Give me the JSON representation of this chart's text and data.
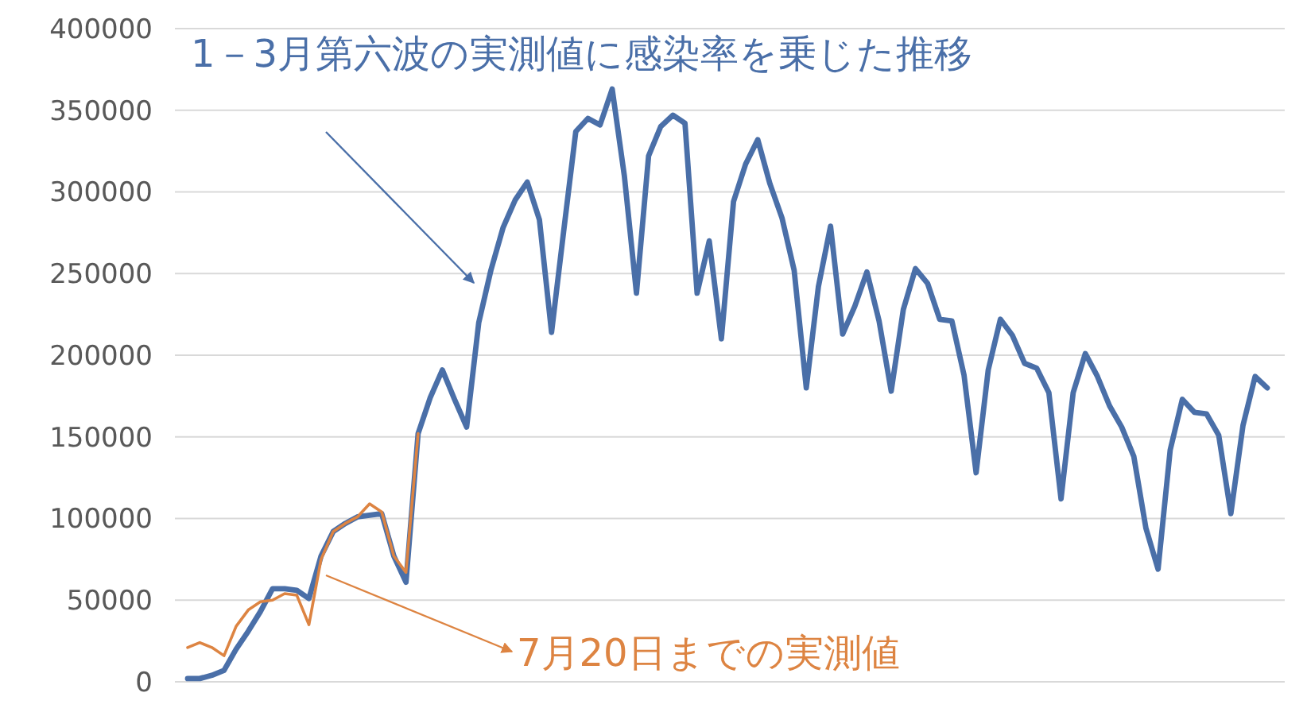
{
  "chart_data": {
    "type": "line",
    "categories": [
      null,
      null,
      null,
      null,
      null,
      null,
      null,
      null,
      null,
      null,
      null,
      null,
      null,
      null,
      null,
      null,
      null,
      null,
      null,
      null,
      null,
      null,
      null,
      null,
      null,
      null,
      null,
      null,
      null,
      null,
      null,
      null,
      null,
      null,
      null,
      null,
      null,
      null,
      null,
      null,
      null,
      null,
      null,
      null,
      null,
      null,
      null,
      null,
      null,
      null,
      null,
      null,
      null,
      null,
      null,
      null,
      null,
      null,
      null,
      null,
      null,
      null,
      null,
      null,
      null,
      null,
      null,
      null,
      null,
      null,
      null,
      null,
      null,
      null,
      null,
      null,
      null,
      null,
      null,
      null,
      null,
      null,
      null,
      null,
      null,
      null,
      null,
      null,
      null,
      null
    ],
    "ylim": [
      0,
      400000
    ],
    "yticks": [
      0,
      50000,
      100000,
      150000,
      200000,
      250000,
      300000,
      350000,
      400000
    ],
    "grid": "y",
    "tick_labels": "y",
    "marker": "none",
    "series": [
      {
        "name": "1－3月第六波の実測値に感染率を乗じた推移",
        "color": "#4a6fa8",
        "values": [
          2000,
          2000,
          4000,
          7000,
          20000,
          31000,
          43000,
          57000,
          57000,
          56000,
          51000,
          77000,
          92000,
          97000,
          101000,
          102000,
          103000,
          77000,
          61000,
          152000,
          174000,
          191000,
          173000,
          156000,
          220000,
          252000,
          278000,
          295000,
          306000,
          283000,
          214000,
          276000,
          337000,
          345000,
          341000,
          363000,
          310000,
          238000,
          322000,
          340000,
          347000,
          342000,
          238000,
          270000,
          210000,
          294000,
          317000,
          332000,
          305000,
          284000,
          252000,
          180000,
          242000,
          279000,
          213000,
          230000,
          251000,
          221000,
          178000,
          228000,
          253000,
          244000,
          222000,
          221000,
          188000,
          128000,
          191000,
          222000,
          212000,
          195000,
          192000,
          177000,
          112000,
          177000,
          201000,
          187000,
          169000,
          156000,
          138000,
          94000,
          69000,
          142000,
          173000,
          165000,
          164000,
          151000,
          103000,
          157000,
          187000,
          180000
        ]
      },
      {
        "name": "7月20日までの実測値",
        "color": "#dd8442",
        "values": [
          21000,
          24000,
          21000,
          16000,
          34000,
          44000,
          49000,
          50000,
          54000,
          53000,
          35000,
          75000,
          92000,
          97000,
          101000,
          109000,
          104000,
          77000,
          67000,
          152000,
          null,
          null,
          null,
          null,
          null,
          null,
          null,
          null,
          null,
          null,
          null,
          null,
          null,
          null,
          null,
          null,
          null,
          null,
          null,
          null,
          null,
          null,
          null,
          null,
          null,
          null,
          null,
          null,
          null,
          null,
          null,
          null,
          null,
          null,
          null,
          null,
          null,
          null,
          null,
          null,
          null,
          null,
          null,
          null,
          null,
          null,
          null,
          null,
          null,
          null,
          null,
          null,
          null,
          null,
          null,
          null,
          null,
          null,
          null,
          null,
          null,
          null,
          null,
          null,
          null,
          null,
          null,
          null,
          null,
          null
        ]
      }
    ]
  }
}
